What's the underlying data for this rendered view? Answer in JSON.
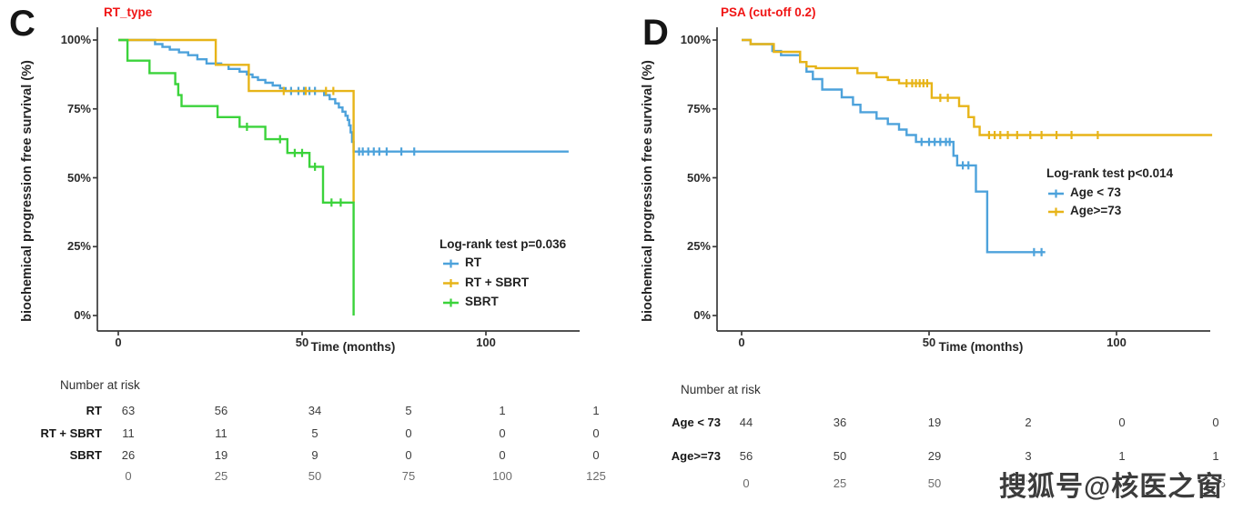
{
  "watermark": {
    "text": "搜狐号@核医之窗"
  },
  "chart_data": [
    {
      "type": "line",
      "subtype": "kaplan-meier-step",
      "panel_letter": "C",
      "title": "RT_type",
      "title_color": "#F01414",
      "ylabel": "biochemical progression free survival (%)",
      "xlabel": "Time (months)",
      "xlim": [
        0,
        125
      ],
      "ylim": [
        0,
        100
      ],
      "grid": false,
      "xticks": [
        {
          "value": 0,
          "label": "0"
        },
        {
          "value": 50,
          "label": "50"
        },
        {
          "value": 100,
          "label": "100"
        }
      ],
      "yticks": [
        {
          "value": 100,
          "label": "100%"
        },
        {
          "value": 75,
          "label": "75%"
        },
        {
          "value": 50,
          "label": "50%"
        },
        {
          "value": 25,
          "label": "25%"
        },
        {
          "value": 0,
          "label": "0%"
        }
      ],
      "legend": {
        "position": "inside-right",
        "title": "Log-rank test p=0.036",
        "items": [
          {
            "label": "RT",
            "color": "#4DA2DB"
          },
          {
            "label": "RT + SBRT",
            "color": "#E7B418"
          },
          {
            "label": "SBRT",
            "color": "#3BD33B"
          }
        ]
      },
      "series": [
        {
          "name": "RT",
          "color": "#4DA2DB",
          "end": 122.5,
          "steps": [
            [
              0,
              100
            ],
            [
              10,
              98.5
            ],
            [
              12,
              97.5
            ],
            [
              14,
              96.5
            ],
            [
              16.5,
              95.5
            ],
            [
              19,
              94.5
            ],
            [
              21.5,
              93
            ],
            [
              24,
              91.5
            ],
            [
              28,
              91
            ],
            [
              30,
              89.5
            ],
            [
              33,
              88.5
            ],
            [
              35,
              87.5
            ],
            [
              36.5,
              86.5
            ],
            [
              38,
              85.5
            ],
            [
              40,
              84.5
            ],
            [
              42,
              83.5
            ],
            [
              44,
              82.5
            ],
            [
              45.5,
              81.5
            ],
            [
              56,
              80
            ],
            [
              57.5,
              78.5
            ],
            [
              59,
              77
            ],
            [
              60,
              75.5
            ],
            [
              61,
              74
            ],
            [
              61.8,
              72.5
            ],
            [
              62.4,
              71
            ],
            [
              62.8,
              69
            ],
            [
              63.2,
              66.5
            ],
            [
              63.6,
              63
            ],
            [
              64,
              59.5
            ]
          ],
          "censors": [
            [
              47,
              81.5
            ],
            [
              49,
              81.5
            ],
            [
              50.5,
              81.5
            ],
            [
              52,
              81.5
            ],
            [
              53.5,
              81.5
            ],
            [
              65.5,
              59.5
            ],
            [
              66.5,
              59.5
            ],
            [
              68,
              59.5
            ],
            [
              69.5,
              59.5
            ],
            [
              71,
              59.5
            ],
            [
              73,
              59.5
            ],
            [
              77,
              59.5
            ],
            [
              80.5,
              59.5
            ]
          ]
        },
        {
          "name": "RT + SBRT",
          "color": "#E7B418",
          "end": 64,
          "steps": [
            [
              0,
              100
            ],
            [
              26.5,
              91
            ],
            [
              35.5,
              81.5
            ],
            [
              64,
              41
            ]
          ],
          "censors": [
            [
              45,
              81.5
            ],
            [
              51,
              81.5
            ],
            [
              56.5,
              81.5
            ],
            [
              58.5,
              81.5
            ]
          ]
        },
        {
          "name": "SBRT",
          "color": "#3BD33B",
          "end": 64,
          "steps": [
            [
              0,
              100
            ],
            [
              2.5,
              92.5
            ],
            [
              8.5,
              88
            ],
            [
              15.5,
              84
            ],
            [
              16.3,
              80
            ],
            [
              17.2,
              76
            ],
            [
              27,
              72
            ],
            [
              33,
              68.5
            ],
            [
              40,
              64
            ],
            [
              46,
              59
            ],
            [
              52,
              54
            ],
            [
              55.7,
              41
            ],
            [
              64,
              0
            ]
          ],
          "censors": [
            [
              35,
              68.5
            ],
            [
              44,
              64
            ],
            [
              48,
              59
            ],
            [
              50,
              59
            ],
            [
              53.5,
              54
            ],
            [
              58,
              41
            ],
            [
              60.5,
              41
            ]
          ]
        }
      ],
      "risk_table": {
        "header": "Number at risk",
        "time_points": [
          {
            "label": "0"
          },
          {
            "label": "25"
          },
          {
            "label": "50"
          },
          {
            "label": "75"
          },
          {
            "label": "100"
          },
          {
            "label": "125"
          }
        ],
        "rows": [
          {
            "label": "RT",
            "values": [
              "63",
              "56",
              "34",
              "5",
              "1",
              "1"
            ]
          },
          {
            "label": "RT + SBRT",
            "values": [
              "11",
              "11",
              "5",
              "0",
              "0",
              "0"
            ]
          },
          {
            "label": "SBRT",
            "values": [
              "26",
              "19",
              "9",
              "0",
              "0",
              "0"
            ]
          }
        ]
      }
    },
    {
      "type": "line",
      "subtype": "kaplan-meier-step",
      "panel_letter": "D",
      "title": "PSA (cut-off 0.2)",
      "title_color": "#F01414",
      "ylabel": "biochemical progression free survival (%)",
      "xlabel": "Time (months)",
      "xlim": [
        0,
        125
      ],
      "ylim": [
        0,
        100
      ],
      "grid": false,
      "xticks": [
        {
          "value": 0,
          "label": "0"
        },
        {
          "value": 50,
          "label": "50"
        },
        {
          "value": 100,
          "label": "100"
        }
      ],
      "yticks": [
        {
          "value": 100,
          "label": "100%"
        },
        {
          "value": 75,
          "label": "75%"
        },
        {
          "value": 50,
          "label": "50%"
        },
        {
          "value": 25,
          "label": "25%"
        },
        {
          "value": 0,
          "label": "0%"
        }
      ],
      "legend": {
        "position": "inside-right",
        "title": "Log-rank test p<0.014",
        "items": [
          {
            "label": "Age < 73",
            "color": "#4DA2DB"
          },
          {
            "label": "Age>=73",
            "color": "#E7B418"
          }
        ]
      },
      "series": [
        {
          "name": "Age < 73",
          "color": "#4DA2DB",
          "end": 81,
          "steps": [
            [
              0,
              100
            ],
            [
              2.4,
              98.5
            ],
            [
              8.2,
              96
            ],
            [
              10.5,
              94.5
            ],
            [
              15.6,
              92
            ],
            [
              17.3,
              88.5
            ],
            [
              19,
              85.8
            ],
            [
              21.5,
              82
            ],
            [
              26.7,
              79.2
            ],
            [
              29.7,
              76.5
            ],
            [
              31.7,
              73.8
            ],
            [
              36,
              71.5
            ],
            [
              39,
              69.5
            ],
            [
              42,
              67.5
            ],
            [
              44,
              65.5
            ],
            [
              46.5,
              63
            ],
            [
              56.5,
              58
            ],
            [
              57.5,
              54.5
            ],
            [
              62.5,
              45
            ],
            [
              65.5,
              23
            ]
          ],
          "censors": [
            [
              48,
              63
            ],
            [
              50,
              63
            ],
            [
              51.5,
              63
            ],
            [
              53,
              63
            ],
            [
              54.5,
              63
            ],
            [
              55.5,
              63
            ],
            [
              59,
              54.5
            ],
            [
              60.5,
              54.5
            ],
            [
              78,
              23
            ],
            [
              80,
              23
            ]
          ]
        },
        {
          "name": "Age>=73",
          "color": "#E7B418",
          "end": 125.5,
          "steps": [
            [
              0,
              100
            ],
            [
              2.4,
              98.5
            ],
            [
              8.6,
              95.7
            ],
            [
              15.6,
              92
            ],
            [
              17.3,
              90.4
            ],
            [
              19.8,
              89.8
            ],
            [
              30.9,
              88
            ],
            [
              36,
              86.5
            ],
            [
              39,
              85.5
            ],
            [
              42,
              84.3
            ],
            [
              50.7,
              79
            ],
            [
              58,
              76
            ],
            [
              60.5,
              72
            ],
            [
              62,
              68.5
            ],
            [
              63.5,
              65.5
            ]
          ],
          "censors": [
            [
              44,
              84.3
            ],
            [
              45.5,
              84.3
            ],
            [
              46.5,
              84.3
            ],
            [
              47.5,
              84.3
            ],
            [
              48.5,
              84.3
            ],
            [
              49.5,
              84.3
            ],
            [
              53,
              79
            ],
            [
              55,
              79
            ],
            [
              66,
              65.5
            ],
            [
              67.5,
              65.5
            ],
            [
              69,
              65.5
            ],
            [
              71,
              65.5
            ],
            [
              73.5,
              65.5
            ],
            [
              77,
              65.5
            ],
            [
              80,
              65.5
            ],
            [
              84,
              65.5
            ],
            [
              88,
              65.5
            ],
            [
              95,
              65.5
            ]
          ]
        }
      ],
      "risk_table": {
        "header": "Number at risk",
        "time_points": [
          {
            "label": "0"
          },
          {
            "label": "25"
          },
          {
            "label": "50"
          },
          {
            "label": "75"
          },
          {
            "label": "100"
          },
          {
            "label": "125"
          }
        ],
        "rows": [
          {
            "label": "Age < 73",
            "values": [
              "44",
              "36",
              "19",
              "2",
              "0",
              "0"
            ]
          },
          {
            "label": "Age>=73",
            "values": [
              "56",
              "50",
              "29",
              "3",
              "1",
              "1"
            ]
          }
        ]
      }
    }
  ]
}
